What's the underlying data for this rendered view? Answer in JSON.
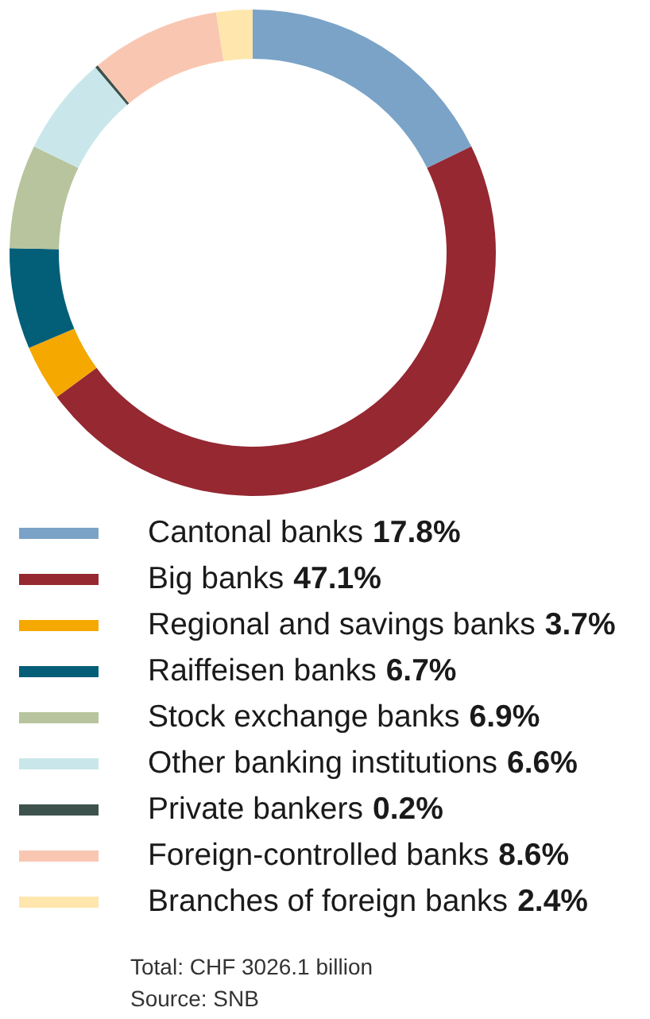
{
  "chart_data": {
    "type": "donut",
    "categories": [
      "Cantonal banks",
      "Big banks",
      "Regional and savings banks",
      "Raiffeisen banks",
      "Stock exchange banks",
      "Other banking institutions",
      "Private bankers",
      "Foreign-controlled banks",
      "Branches of foreign banks"
    ],
    "values": [
      17.8,
      47.1,
      3.7,
      6.7,
      6.9,
      6.6,
      0.2,
      8.6,
      2.4
    ],
    "value_labels": [
      "17.8%",
      "47.1%",
      "3.7%",
      "6.7%",
      "6.9%",
      "6.6%",
      "0.2%",
      "8.6%",
      "2.4%"
    ],
    "colors": [
      "#7ba3c7",
      "#952831",
      "#f5a800",
      "#035e78",
      "#b7c49d",
      "#c9e7ea",
      "#3d524c",
      "#f9c7b1",
      "#fee6ad"
    ],
    "legend": "bottom",
    "annotations": [
      "Total: CHF 3026.1 billion",
      "Source: SNB"
    ]
  }
}
